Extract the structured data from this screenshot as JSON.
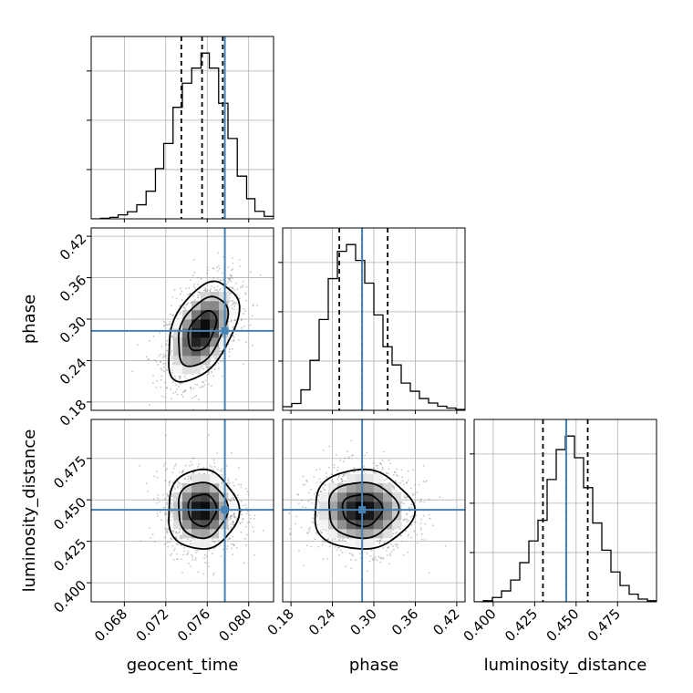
{
  "chart_data": {
    "type": "corner",
    "parameters": [
      "geocent_time",
      "phase",
      "luminosity_distance"
    ],
    "truths": {
      "geocent_time": 0.0777,
      "phase": 0.283,
      "luminosity_distance": 0.444
    },
    "colors": {
      "truth": "#4682b4",
      "hist": "#000000",
      "grid": "#b0b0b0",
      "points": "#7f7f7f"
    },
    "grid": true,
    "axes": {
      "geocent_time": {
        "range": [
          0.0648,
          0.0824
        ],
        "ticks": [
          0.068,
          0.072,
          0.076,
          0.08
        ],
        "tick_labels": [
          "0.068",
          "0.072",
          "0.076",
          "0.080"
        ]
      },
      "phase": {
        "range": [
          0.168,
          0.432
        ],
        "ticks": [
          0.18,
          0.24,
          0.3,
          0.36,
          0.42
        ],
        "tick_labels": [
          "0.18",
          "0.24",
          "0.30",
          "0.36",
          "0.42"
        ]
      },
      "luminosity_distance": {
        "range": [
          0.3885,
          0.4985
        ],
        "ticks": [
          0.4,
          0.425,
          0.45,
          0.475
        ],
        "tick_labels": [
          "0.400",
          "0.425",
          "0.450",
          "0.475"
        ]
      }
    },
    "histograms": [
      {
        "param": "geocent_time",
        "quantiles": [
          0.0735,
          0.0755,
          0.0775
        ],
        "bin_edges": [
          0.0648,
          0.0657,
          0.0666,
          0.0674,
          0.0683,
          0.0692,
          0.0701,
          0.071,
          0.0718,
          0.0727,
          0.0736,
          0.0745,
          0.0754,
          0.0762,
          0.0771,
          0.078,
          0.0789,
          0.0798,
          0.0806,
          0.0815,
          0.0824
        ],
        "counts": [
          0,
          1,
          3,
          8,
          14,
          28,
          55,
          100,
          150,
          222,
          270,
          300,
          330,
          300,
          230,
          160,
          85,
          40,
          15,
          5
        ]
      },
      {
        "param": "phase",
        "quantiles": [
          0.25,
          0.283,
          0.32
        ],
        "bin_edges": [
          0.168,
          0.1812,
          0.1944,
          0.2076,
          0.2208,
          0.234,
          0.2472,
          0.2604,
          0.2736,
          0.2868,
          0.3,
          0.3132,
          0.3264,
          0.3396,
          0.3528,
          0.366,
          0.3792,
          0.3924,
          0.4056,
          0.4188,
          0.432
        ],
        "counts": [
          8,
          15,
          45,
          110,
          200,
          290,
          350,
          365,
          330,
          280,
          210,
          140,
          100,
          60,
          42,
          26,
          16,
          9,
          5,
          2
        ]
      },
      {
        "param": "luminosity_distance",
        "quantiles": [
          0.43,
          0.444,
          0.457
        ],
        "bin_edges": [
          0.3885,
          0.394,
          0.3995,
          0.405,
          0.4105,
          0.416,
          0.4215,
          0.427,
          0.4325,
          0.438,
          0.4435,
          0.449,
          0.4545,
          0.46,
          0.4655,
          0.471,
          0.4765,
          0.482,
          0.4875,
          0.493,
          0.4985
        ],
        "counts": [
          0,
          2,
          8,
          20,
          40,
          72,
          112,
          150,
          225,
          280,
          305,
          265,
          210,
          145,
          95,
          55,
          30,
          14,
          5,
          2
        ]
      }
    ],
    "scatter_pairs": [
      {
        "x": "geocent_time",
        "y": "phase",
        "mean": [
          0.0755,
          0.283
        ],
        "std": [
          0.0017,
          0.036
        ],
        "corr": 0.45,
        "contour_levels": [
          "0.5",
          "0.9",
          "0.99"
        ]
      },
      {
        "x": "geocent_time",
        "y": "luminosity_distance",
        "mean": [
          0.0755,
          0.444
        ],
        "std": [
          0.0017,
          0.012
        ],
        "corr": 0.0,
        "contour_levels": [
          "0.5",
          "0.9",
          "0.99"
        ]
      },
      {
        "x": "phase",
        "y": "luminosity_distance",
        "mean": [
          0.283,
          0.444
        ],
        "std": [
          0.036,
          0.012
        ],
        "corr": 0.0,
        "contour_levels": [
          "0.5",
          "0.9",
          "0.99"
        ]
      }
    ]
  }
}
